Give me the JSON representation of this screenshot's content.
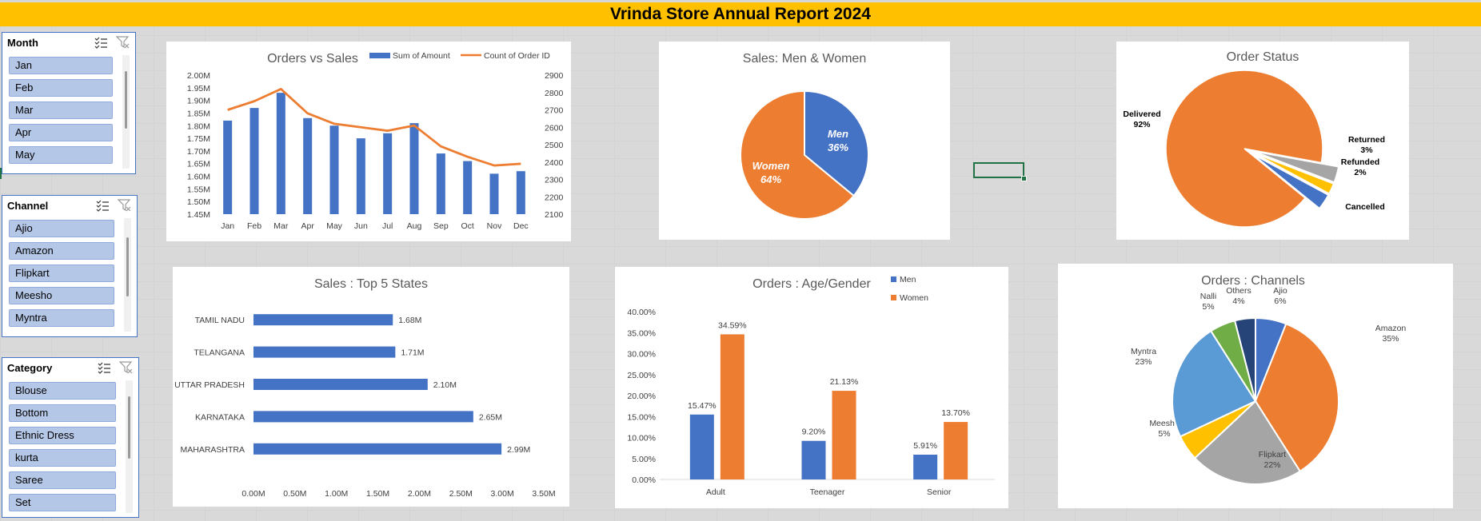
{
  "report": {
    "title": "Vrinda Store Annual Report 2024"
  },
  "slicers": [
    {
      "title": "Month",
      "items": [
        "Jan",
        "Feb",
        "Mar",
        "Apr",
        "May"
      ]
    },
    {
      "title": "Channel",
      "items": [
        "Ajio",
        "Amazon",
        "Flipkart",
        "Meesho",
        "Myntra"
      ]
    },
    {
      "title": "Category",
      "items": [
        "Blouse",
        "Bottom",
        "Ethnic Dress",
        "kurta",
        "Saree",
        "Set"
      ]
    }
  ],
  "colors": {
    "blue": "#4472c4",
    "orange": "#ed7d31",
    "gray": "#a5a5a5",
    "yellow": "#ffc000",
    "lightblue": "#5b9bd5",
    "green": "#70ad47",
    "navy": "#264478",
    "title_bar": "#ffc000",
    "slicer_item": "#b4c7e7"
  },
  "chart_data": [
    {
      "id": "orders-vs-sales",
      "type": "bar+line",
      "title": "Orders vs Sales",
      "categories": [
        "Jan",
        "Feb",
        "Mar",
        "Apr",
        "May",
        "Jun",
        "Jul",
        "Aug",
        "Sep",
        "Oct",
        "Nov",
        "Dec"
      ],
      "series": [
        {
          "name": "Sum of Amount",
          "type": "bar",
          "axis": "left",
          "values": [
            1.82,
            1.87,
            1.93,
            1.83,
            1.8,
            1.75,
            1.77,
            1.81,
            1.69,
            1.66,
            1.61,
            1.62
          ]
        },
        {
          "name": "Count of Order ID",
          "type": "line",
          "axis": "right",
          "values": [
            2700,
            2750,
            2820,
            2680,
            2620,
            2600,
            2580,
            2610,
            2490,
            2430,
            2380,
            2390
          ]
        }
      ],
      "ylim_left": [
        1.45,
        2.0
      ],
      "ylim_right": [
        2100,
        2900
      ],
      "left_ticks": [
        "1.45M",
        "1.50M",
        "1.55M",
        "1.60M",
        "1.65M",
        "1.70M",
        "1.75M",
        "1.80M",
        "1.85M",
        "1.90M",
        "1.95M",
        "2.00M"
      ],
      "right_ticks": [
        "2100",
        "2200",
        "2300",
        "2400",
        "2500",
        "2600",
        "2700",
        "2800",
        "2900"
      ],
      "legend": "top-right"
    },
    {
      "id": "sales-men-women",
      "type": "pie",
      "title": "Sales: Men & Women",
      "slices": [
        {
          "label": "Men",
          "value": 36,
          "text": "36%"
        },
        {
          "label": "Women",
          "value": 64,
          "text": "64%"
        }
      ]
    },
    {
      "id": "order-status",
      "type": "pie",
      "title": "Order Status",
      "slices": [
        {
          "label": "Delivered",
          "value": 92,
          "text": "92%"
        },
        {
          "label": "Returned",
          "value": 3,
          "text": "3%"
        },
        {
          "label": "Refunded",
          "value": 2,
          "text": "2%"
        },
        {
          "label": "Cancelled",
          "value": 3,
          "text": ""
        }
      ]
    },
    {
      "id": "top-5-states",
      "type": "bar",
      "orientation": "horizontal",
      "title": "Sales : Top 5 States",
      "categories": [
        "TAMIL NADU",
        "TELANGANA",
        "UTTAR PRADESH",
        "KARNATAKA",
        "MAHARASHTRA"
      ],
      "values": [
        1.68,
        1.71,
        2.1,
        2.65,
        2.99
      ],
      "value_labels": [
        "1.68M",
        "1.71M",
        "2.10M",
        "2.65M",
        "2.99M"
      ],
      "xlim": [
        0,
        3.5
      ],
      "x_ticks": [
        "0.00M",
        "0.50M",
        "1.00M",
        "1.50M",
        "2.00M",
        "2.50M",
        "3.00M",
        "3.50M"
      ]
    },
    {
      "id": "age-gender",
      "type": "bar",
      "title": "Orders : Age/Gender",
      "categories": [
        "Adult",
        "Teenager",
        "Senior"
      ],
      "series": [
        {
          "name": "Men",
          "values": [
            15.47,
            9.2,
            5.91
          ],
          "labels": [
            "15.47%",
            "9.20%",
            "5.91%"
          ]
        },
        {
          "name": "Women",
          "values": [
            34.59,
            21.13,
            13.7
          ],
          "labels": [
            "34.59%",
            "21.13%",
            "13.70%"
          ]
        }
      ],
      "ylim": [
        0,
        40
      ],
      "y_ticks": [
        "0.00%",
        "5.00%",
        "10.00%",
        "15.00%",
        "20.00%",
        "25.00%",
        "30.00%",
        "35.00%",
        "40.00%"
      ],
      "legend": "top"
    },
    {
      "id": "orders-channels",
      "type": "pie",
      "title": "Orders : Channels",
      "slices": [
        {
          "label": "Ajio",
          "value": 6,
          "text": "6%"
        },
        {
          "label": "Amazon",
          "value": 35,
          "text": "35%"
        },
        {
          "label": "Flipkart",
          "value": 22,
          "text": "22%"
        },
        {
          "label": "Meesho",
          "value": 5,
          "text": "5%"
        },
        {
          "label": "Myntra",
          "value": 23,
          "text": "23%"
        },
        {
          "label": "Nalli",
          "value": 5,
          "text": "5%"
        },
        {
          "label": "Others",
          "value": 4,
          "text": "4%"
        }
      ]
    }
  ]
}
